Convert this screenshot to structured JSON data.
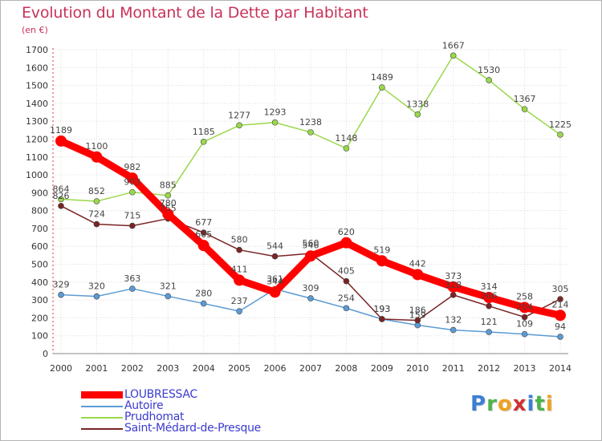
{
  "title": "Evolution du Montant de la Dette par Habitant",
  "unit_label": "(en €)",
  "logo_text": "Proxiti",
  "chart_data": {
    "type": "line",
    "title": "Evolution du Montant de la Dette par Habitant",
    "subtitle": "(en €)",
    "xlabel": "",
    "ylabel": "",
    "x": [
      "2000",
      "2001",
      "2002",
      "2003",
      "2004",
      "2005",
      "2006",
      "2007",
      "2008",
      "2009",
      "2010",
      "2011",
      "2012",
      "2013",
      "2014"
    ],
    "y_ticks": [
      0,
      100,
      200,
      300,
      400,
      500,
      600,
      700,
      800,
      900,
      1000,
      1100,
      1200,
      1300,
      1400,
      1500,
      1600,
      1700
    ],
    "ylim": [
      0,
      1700
    ],
    "grid": true,
    "legend_position": "bottom-left",
    "series": [
      {
        "name": "LOUBRESSAC",
        "color": "#ff0000",
        "values": [
          1189,
          1100,
          982,
          780,
          605,
          411,
          344,
          546,
          620,
          519,
          442,
          373,
          314,
          258,
          214
        ]
      },
      {
        "name": "Autoire",
        "color": "#5b9bd5",
        "values": [
          329,
          320,
          363,
          321,
          280,
          237,
          361,
          309,
          254,
          193,
          159,
          132,
          121,
          109,
          94
        ]
      },
      {
        "name": "Prudhomat",
        "color": "#9ad84b",
        "values": [
          864,
          852,
          903,
          885,
          1185,
          1277,
          1293,
          1238,
          1148,
          1489,
          1338,
          1667,
          1530,
          1367,
          1225
        ]
      },
      {
        "name": "Saint-Médard-de-Presque",
        "color": "#7a2424",
        "values": [
          826,
          724,
          715,
          755,
          677,
          580,
          544,
          560,
          405,
          193,
          186,
          328,
          266,
          204,
          305
        ]
      }
    ]
  }
}
